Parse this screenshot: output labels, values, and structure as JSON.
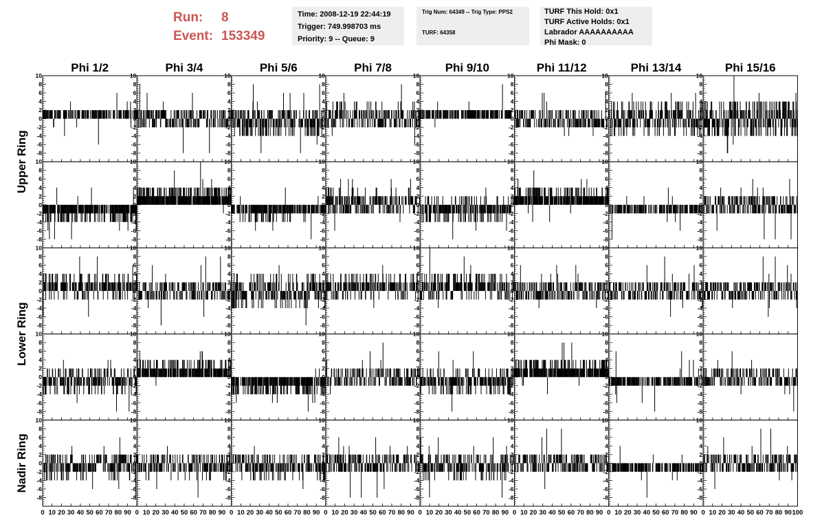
{
  "header": {
    "run_label": "Run:",
    "run_value": "8",
    "event_label": "Event:",
    "event_value": "153349"
  },
  "info_box_1": {
    "time": "Time: 2008-12-19 22:44:19",
    "trigger": "Trigger: 749.998703 ms",
    "priority": "Priority: 9 -- Queue: 9"
  },
  "info_box_2": {
    "trig": "Trig Num: 64349 -- Trig Type: PPS2",
    "turf": "TURF: 64358"
  },
  "info_box_3": {
    "turf_hold": "TURF This Hold: 0x1",
    "turf_active": "TURF Active Holds: 0x1",
    "labrador": "Labrador AAAAAAAAAA",
    "phi_mask": "Phi Mask: 0"
  },
  "chart_data": {
    "type": "bar",
    "columns": [
      "Phi 1/2",
      "Phi 3/4",
      "Phi 5/6",
      "Phi 7/8",
      "Phi 9/10",
      "Phi 11/12",
      "Phi 13/14",
      "Phi 15/16"
    ],
    "row_groups": [
      {
        "label": "Upper Ring",
        "rows": 2
      },
      {
        "label": "Lower Ring",
        "rows": 2
      },
      {
        "label": "Nadir Ring",
        "rows": 1
      }
    ],
    "xlim": [
      0,
      100
    ],
    "ylim": [
      -10,
      10
    ],
    "x_ticks": [
      0,
      10,
      20,
      30,
      40,
      50,
      60,
      70,
      80,
      90,
      100
    ],
    "x_tick_labels": [
      "0",
      "10",
      "20",
      "30",
      "40",
      "50",
      "60",
      "70",
      "80",
      "90",
      "100"
    ],
    "y_ticks": [
      -10,
      -8,
      -6,
      -4,
      -2,
      0,
      2,
      4,
      6,
      8,
      10
    ],
    "y_tick_labels": [
      "",
      "-8",
      "-6",
      "-4",
      "-2",
      "0",
      "2",
      "4",
      "6",
      "8",
      "10"
    ],
    "panels": [
      [
        {
          "offset": 1,
          "spread": 2
        },
        {
          "offset": 0,
          "spread": 3
        },
        {
          "offset": -1,
          "spread": 4
        },
        {
          "offset": 0.5,
          "spread": 3
        },
        {
          "offset": 1,
          "spread": 2
        },
        {
          "offset": 0,
          "spread": 3
        },
        {
          "offset": 0,
          "spread": 4
        },
        {
          "offset": 0,
          "spread": 5
        }
      ],
      [
        {
          "offset": -2,
          "spread": 2
        },
        {
          "offset": 2.5,
          "spread": 2
        },
        {
          "offset": -1.5,
          "spread": 2
        },
        {
          "offset": 0.5,
          "spread": 3
        },
        {
          "offset": -1,
          "spread": 3
        },
        {
          "offset": 2,
          "spread": 2
        },
        {
          "offset": -1,
          "spread": 2
        },
        {
          "offset": 0,
          "spread": 3
        }
      ],
      [
        {
          "offset": 1,
          "spread": 3
        },
        {
          "offset": 0,
          "spread": 3
        },
        {
          "offset": 0,
          "spread": 4
        },
        {
          "offset": 1,
          "spread": 3
        },
        {
          "offset": 1,
          "spread": 3
        },
        {
          "offset": 0,
          "spread": 3
        },
        {
          "offset": 0,
          "spread": 3
        },
        {
          "offset": 0,
          "spread": 3
        }
      ],
      [
        {
          "offset": -1,
          "spread": 3
        },
        {
          "offset": 2,
          "spread": 2
        },
        {
          "offset": -2,
          "spread": 2
        },
        {
          "offset": 0,
          "spread": 3
        },
        {
          "offset": -1,
          "spread": 3
        },
        {
          "offset": 2,
          "spread": 2
        },
        {
          "offset": -1,
          "spread": 2
        },
        {
          "offset": 0,
          "spread": 3
        }
      ],
      [
        {
          "offset": -0.5,
          "spread": 3
        },
        {
          "offset": -0.5,
          "spread": 3
        },
        {
          "offset": -0.5,
          "spread": 3
        },
        {
          "offset": 0,
          "spread": 3
        },
        {
          "offset": -0.5,
          "spread": 3
        },
        {
          "offset": 0,
          "spread": 3
        },
        {
          "offset": -1,
          "spread": 2
        },
        {
          "offset": 0,
          "spread": 3
        }
      ]
    ]
  }
}
